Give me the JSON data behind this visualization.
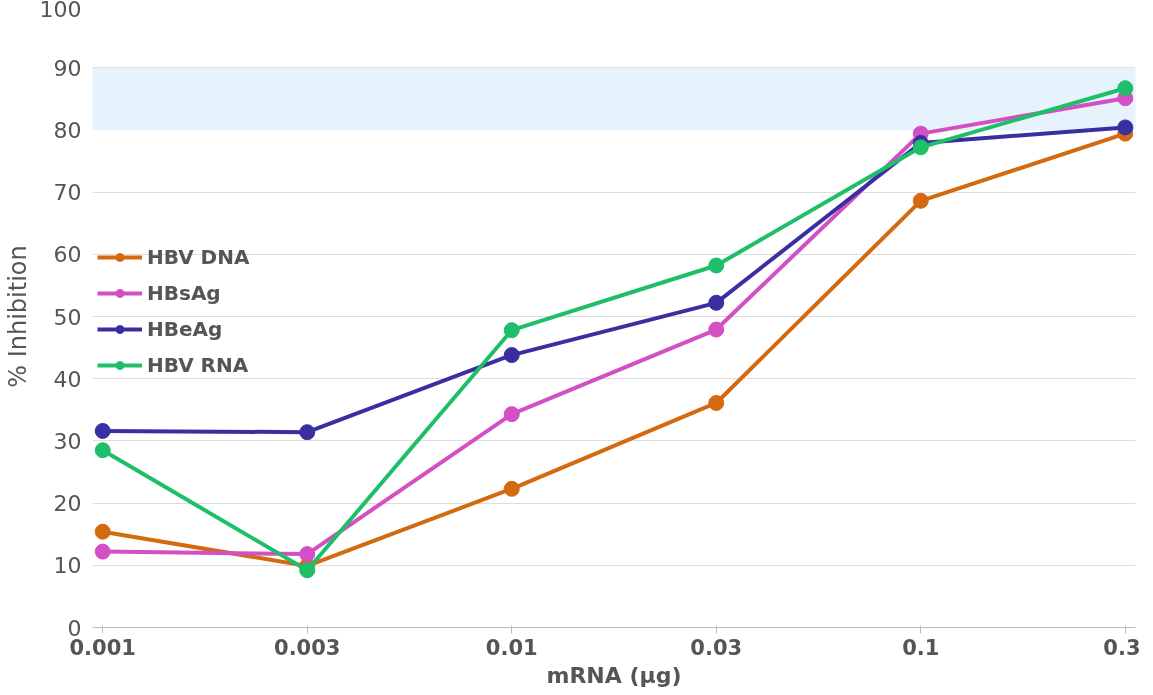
{
  "chart_data": {
    "type": "line",
    "xlabel": "mRNA (μg)",
    "ylabel": "% Inhibition",
    "categories": [
      "0.001",
      "0.003",
      "0.01",
      "0.03",
      "0.1",
      "0.3"
    ],
    "series": [
      {
        "name": "HBV DNA",
        "color": "#d46a0f",
        "values": [
          15.4,
          9.9,
          22.3,
          36.1,
          68.6,
          79.4
        ]
      },
      {
        "name": "HBsAg",
        "color": "#d44fc4",
        "values": [
          12.2,
          11.8,
          34.3,
          47.9,
          79.4,
          85.1
        ]
      },
      {
        "name": "HBeAg",
        "color": "#3a2fa0",
        "values": [
          31.6,
          31.4,
          43.8,
          52.2,
          77.9,
          80.4
        ]
      },
      {
        "name": "HBV RNA",
        "color": "#1fbf6a",
        "values": [
          28.5,
          9.2,
          47.8,
          58.2,
          77.2,
          86.7
        ]
      }
    ],
    "ylim": [
      0,
      100
    ],
    "yticks": [
      0,
      10,
      20,
      30,
      40,
      50,
      60,
      70,
      80,
      90,
      100
    ],
    "bands": [
      {
        "axis": "y",
        "from": 80,
        "to": 90,
        "color": "#e6f3fc"
      }
    ],
    "grid": "y",
    "legend": "left",
    "marker": "circle",
    "line_style": "solid"
  }
}
